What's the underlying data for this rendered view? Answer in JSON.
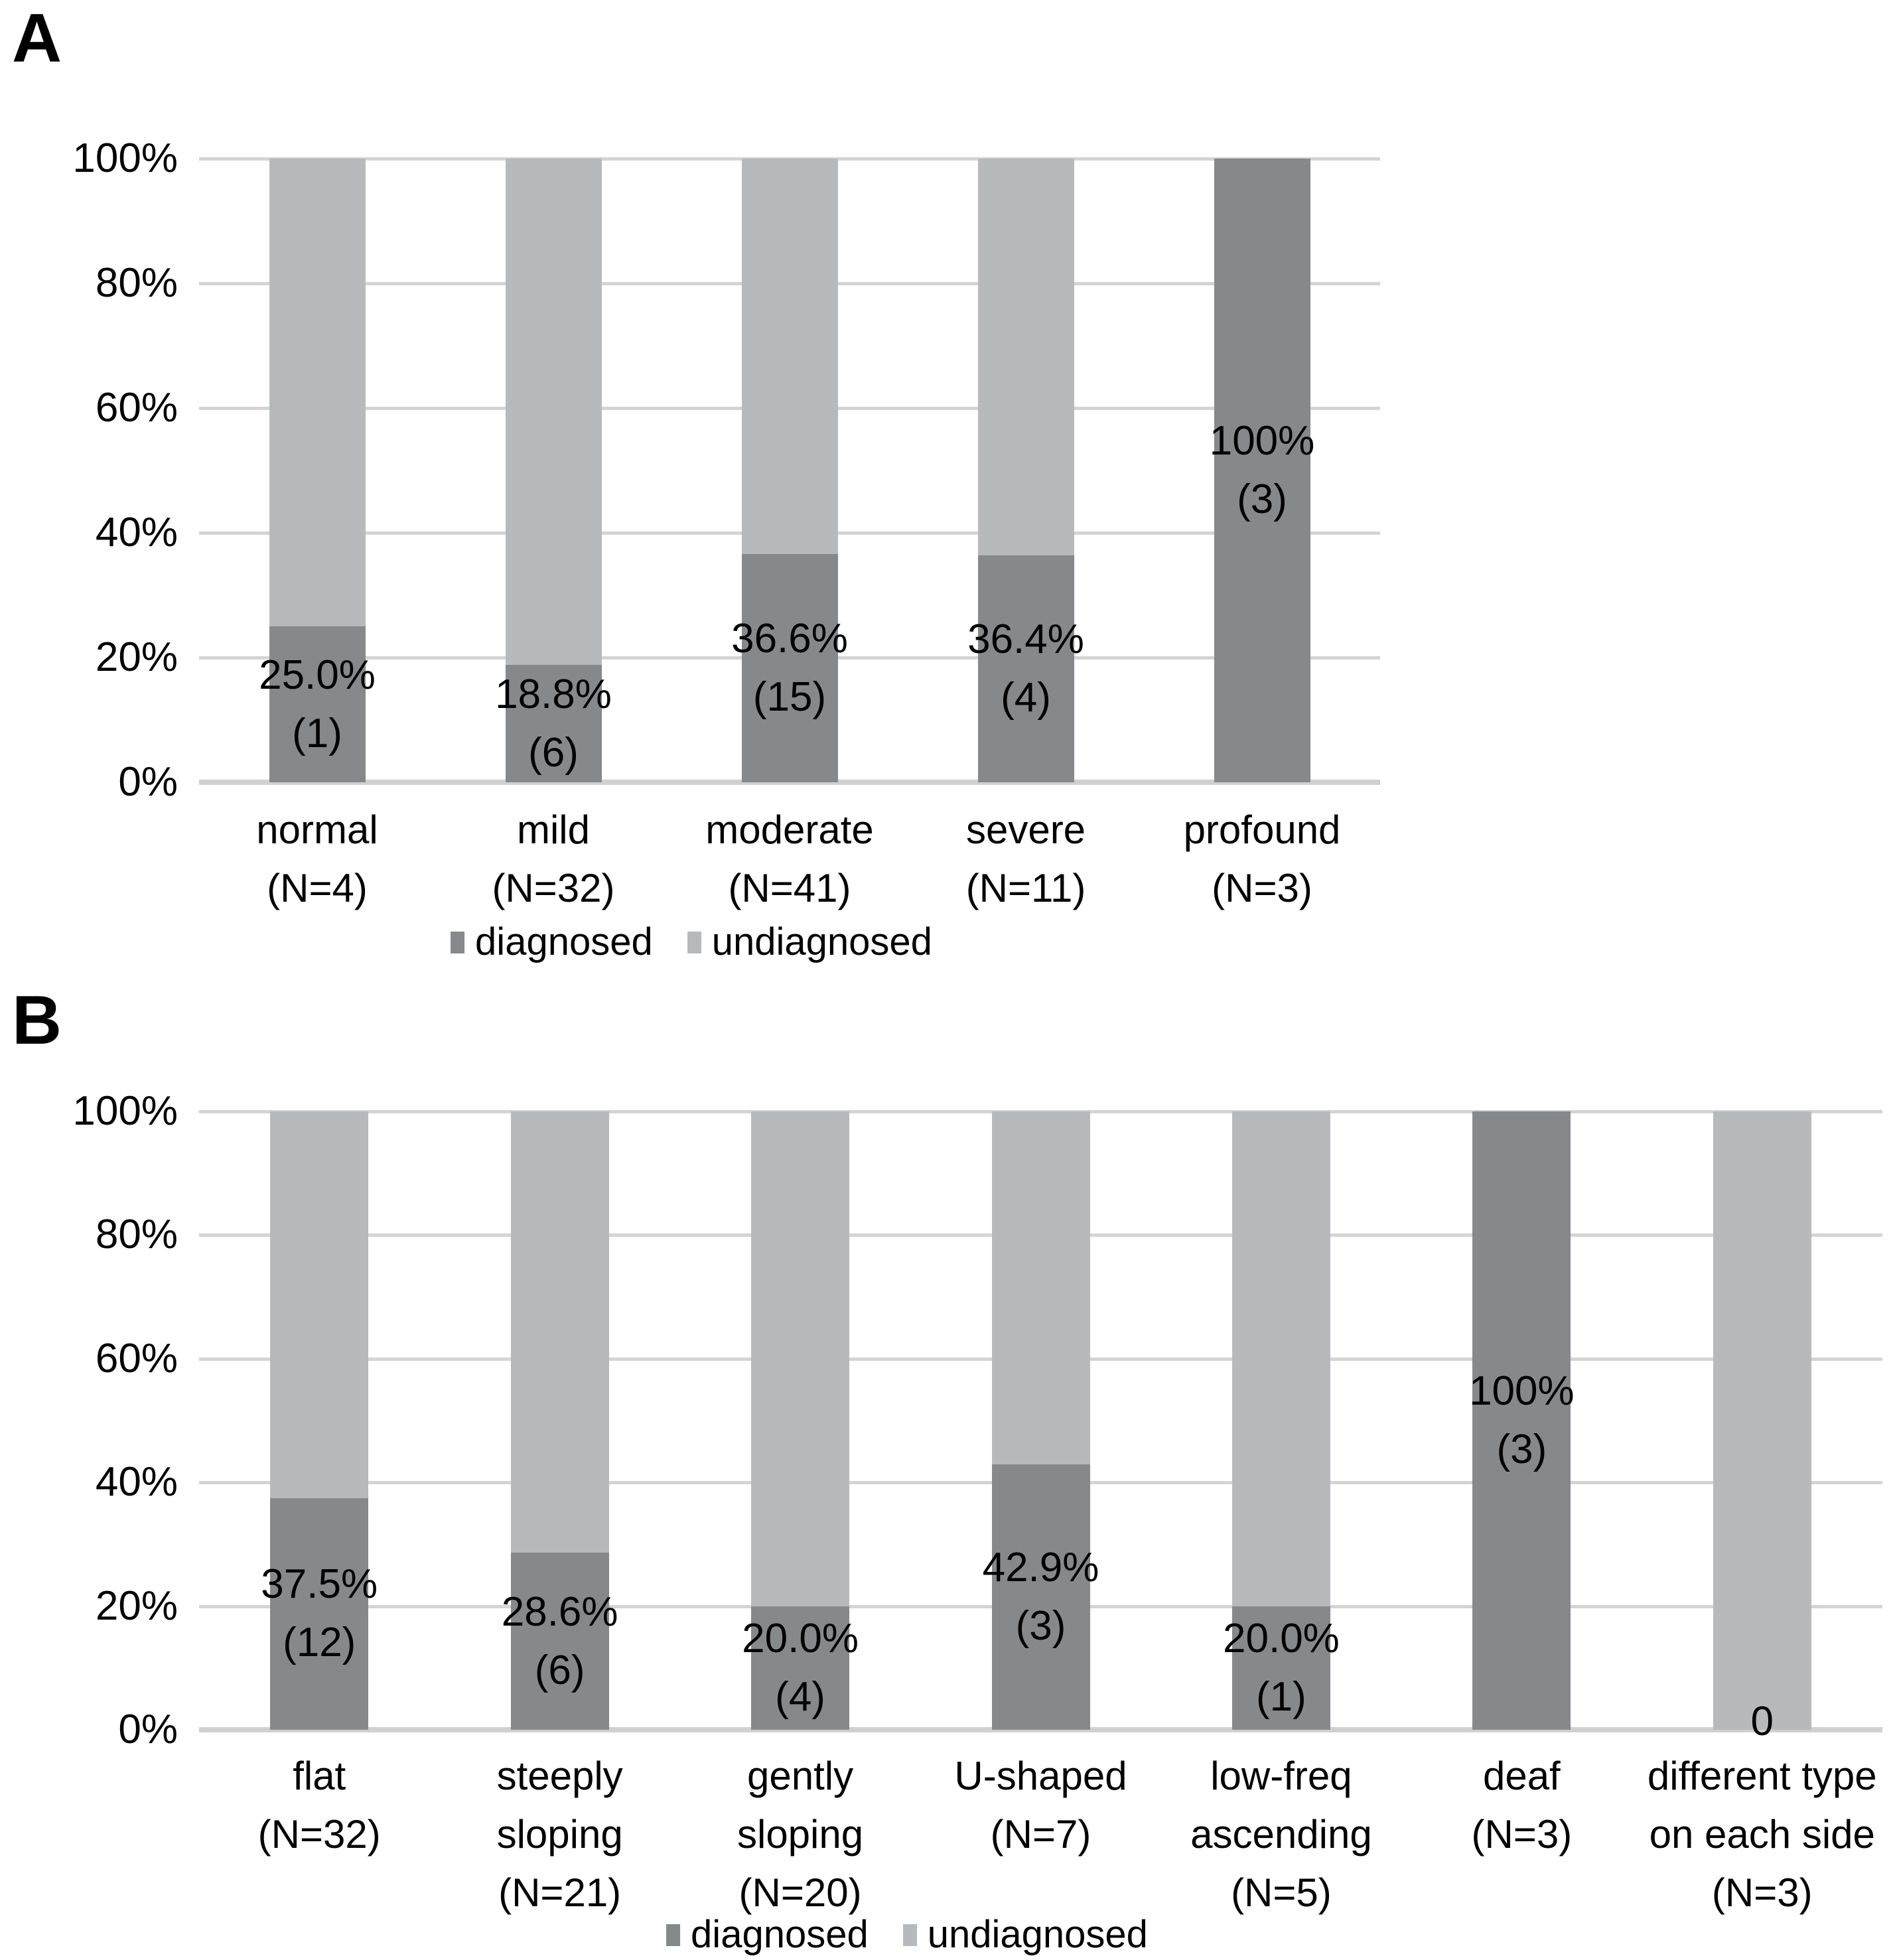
{
  "figure": {
    "background": "#ffffff",
    "text_color": "#000000",
    "gridline_color": "#d4d4d4",
    "axis_line_color": "#d0d0d0",
    "diagnosed_color": "#85898c",
    "undiagnosed_color": "#b7babc"
  },
  "chart_data": [
    {
      "type": "bar",
      "stacking": "percent",
      "orientation": "vertical",
      "panel_label": "A",
      "grid": true,
      "legend_position": "bottom",
      "ylim": [
        0,
        100
      ],
      "yticks": [
        "0%",
        "20%",
        "40%",
        "60%",
        "80%",
        "100%"
      ],
      "categories": [
        {
          "name": "normal",
          "label_lines": [
            "normal",
            "(N=4)"
          ],
          "n": 4
        },
        {
          "name": "mild",
          "label_lines": [
            "mild",
            "(N=32)"
          ],
          "n": 32
        },
        {
          "name": "moderate",
          "label_lines": [
            "moderate",
            "(N=41)"
          ],
          "n": 41
        },
        {
          "name": "severe",
          "label_lines": [
            "severe",
            "(N=11)"
          ],
          "n": 11
        },
        {
          "name": "profound",
          "label_lines": [
            "profound",
            "(N=3)"
          ],
          "n": 3
        }
      ],
      "series": [
        {
          "name": "diagnosed",
          "color": "#85898c",
          "values": [
            25.0,
            18.8,
            36.6,
            36.4,
            100
          ]
        },
        {
          "name": "undiagnosed",
          "color": "#b7babc",
          "values": [
            75.0,
            81.2,
            63.4,
            63.6,
            0
          ]
        }
      ],
      "data_labels": [
        {
          "lines": [
            "25.0%",
            "(1)"
          ]
        },
        {
          "lines": [
            "18.8%",
            "(6)"
          ]
        },
        {
          "lines": [
            "36.6%",
            "(15)"
          ]
        },
        {
          "lines": [
            "36.4%",
            "(4)"
          ]
        },
        {
          "lines": [
            "100%",
            "(3)"
          ]
        }
      ],
      "legend": [
        {
          "label": "diagnosed",
          "color": "#85898c"
        },
        {
          "label": "undiagnosed",
          "color": "#b7babc"
        }
      ]
    },
    {
      "type": "bar",
      "stacking": "percent",
      "orientation": "vertical",
      "panel_label": "B",
      "grid": true,
      "legend_position": "bottom",
      "ylim": [
        0,
        100
      ],
      "yticks": [
        "0%",
        "20%",
        "40%",
        "60%",
        "80%",
        "100%"
      ],
      "categories": [
        {
          "name": "flat",
          "label_lines": [
            "flat",
            "(N=32)"
          ],
          "n": 32
        },
        {
          "name": "steeply-sloping",
          "label_lines": [
            "steeply",
            "sloping",
            "(N=21)"
          ],
          "n": 21
        },
        {
          "name": "gently-sloping",
          "label_lines": [
            "gently",
            "sloping",
            "(N=20)"
          ],
          "n": 20
        },
        {
          "name": "u-shaped",
          "label_lines": [
            "U-shaped",
            "(N=7)"
          ],
          "n": 7
        },
        {
          "name": "low-freq-ascending",
          "label_lines": [
            "low-freq",
            "ascending",
            "(N=5)"
          ],
          "n": 5
        },
        {
          "name": "deaf",
          "label_lines": [
            "deaf",
            "(N=3)"
          ],
          "n": 3
        },
        {
          "name": "different-type-each-side",
          "label_lines": [
            "different type",
            "on each side",
            "(N=3)"
          ],
          "n": 3
        }
      ],
      "series": [
        {
          "name": "diagnosed",
          "color": "#85898c",
          "values": [
            37.5,
            28.6,
            20.0,
            42.9,
            20.0,
            100,
            0
          ]
        },
        {
          "name": "undiagnosed",
          "color": "#b7babc",
          "values": [
            62.5,
            71.4,
            80.0,
            57.1,
            80.0,
            0,
            100
          ]
        }
      ],
      "data_labels": [
        {
          "lines": [
            "37.5%",
            "(12)"
          ]
        },
        {
          "lines": [
            "28.6%",
            "(6)"
          ]
        },
        {
          "lines": [
            "20.0%",
            "(4)"
          ]
        },
        {
          "lines": [
            "42.9%",
            "(3)"
          ]
        },
        {
          "lines": [
            "20.0%",
            "(1)"
          ]
        },
        {
          "lines": [
            "100%",
            "(3)"
          ]
        },
        {
          "lines": [
            "0"
          ]
        }
      ],
      "legend": [
        {
          "label": "diagnosed",
          "color": "#85898c"
        },
        {
          "label": "undiagnosed",
          "color": "#b7babc"
        }
      ]
    }
  ]
}
